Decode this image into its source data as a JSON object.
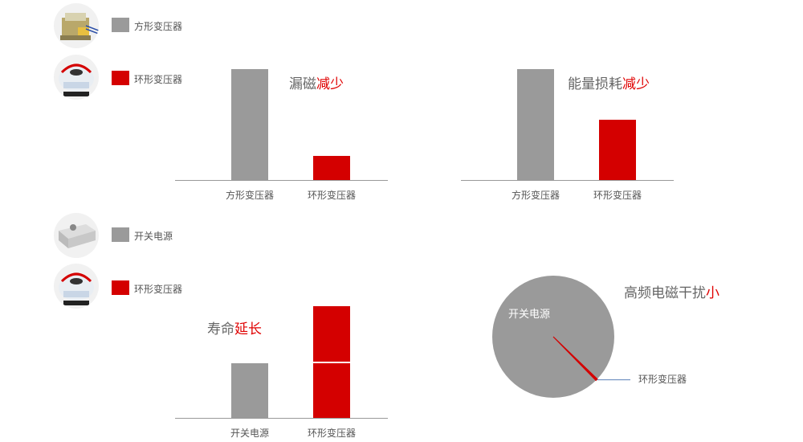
{
  "colors": {
    "gray": "#9a9a9a",
    "red": "#d40000",
    "highlight": "#e00000"
  },
  "legends": [
    {
      "icon": "square-transformer-photo",
      "color": "#9a9a9a",
      "label": "方形变压器"
    },
    {
      "icon": "toroidal-transformer-photo",
      "color": "#d40000",
      "label": "环形变压器"
    },
    {
      "icon": "switching-power-supply-photo",
      "color": "#9a9a9a",
      "label": "开关电源"
    },
    {
      "icon": "toroidal-transformer-photo",
      "color": "#d40000",
      "label": "环形变压器"
    }
  ],
  "chart_data": [
    {
      "type": "bar",
      "title": "漏磁",
      "title_highlight": "减少",
      "categories": [
        "方形变压器",
        "环形变压器"
      ],
      "values": [
        100,
        22
      ],
      "colors": [
        "#9a9a9a",
        "#d40000"
      ],
      "ylim": [
        0,
        100
      ],
      "grid": false
    },
    {
      "type": "bar",
      "title": "能量损耗",
      "title_highlight": "减少",
      "categories": [
        "方形变压器",
        "环形变压器"
      ],
      "values": [
        100,
        54
      ],
      "colors": [
        "#9a9a9a",
        "#d40000"
      ],
      "ylim": [
        0,
        100
      ],
      "grid": false
    },
    {
      "type": "bar",
      "title": "寿命",
      "title_highlight": "延长",
      "categories": [
        "开关电源",
        "环形变压器"
      ],
      "values": [
        49,
        100
      ],
      "stack_split": [
        null,
        50
      ],
      "colors": [
        "#9a9a9a",
        "#d40000"
      ],
      "ylim": [
        0,
        100
      ],
      "grid": false
    },
    {
      "type": "pie",
      "title": "高频电磁干扰",
      "title_highlight": "小",
      "slices": [
        {
          "label": "开关电源",
          "value": 99.5,
          "color": "#9a9a9a"
        },
        {
          "label": "环形变压器",
          "value": 0.5,
          "color": "#d40000"
        }
      ]
    }
  ]
}
